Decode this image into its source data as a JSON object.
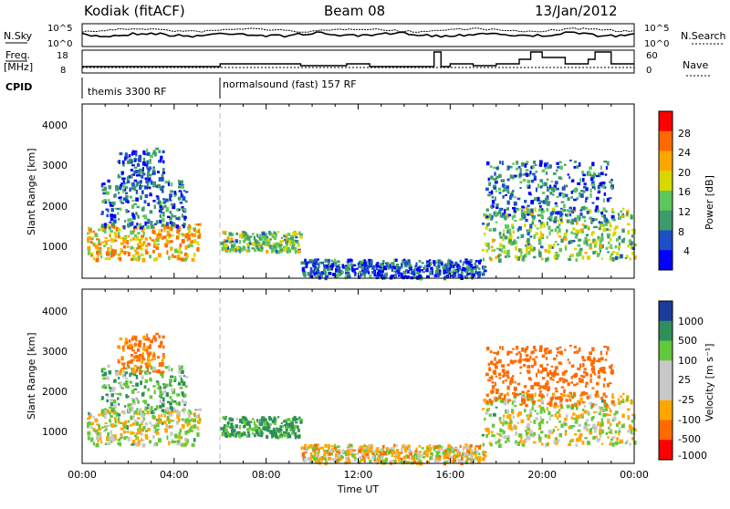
{
  "header": {
    "radar": "Kodiak (fitACF)",
    "beam": "Beam 08",
    "date": "13/Jan/2012"
  },
  "noise_panel": {
    "left_label": "N.Sky",
    "right_label": "N.Search",
    "right_ticks": [
      "10^5",
      "10^0"
    ],
    "left_ticks": [
      "10^5",
      "10^0"
    ]
  },
  "freq_panel": {
    "left_label_line1": "Freq.",
    "left_label_line2": "[MHz]",
    "left_ticks": [
      "18",
      "8"
    ],
    "right_label": "Nave",
    "right_ticks": [
      "60",
      "0"
    ]
  },
  "cpid": {
    "label": "CPID",
    "segments": [
      {
        "name": "themis 3300 RF",
        "start_hour": 0.0
      },
      {
        "name": "normalsound (fast) 157 RF",
        "start_hour": 6.0
      }
    ]
  },
  "power_panel": {
    "ylabel": "Slant Range [km]",
    "yticks": [
      "4000",
      "3000",
      "2000",
      "1000"
    ],
    "colorbar_label": "Power [dB]",
    "colorbar_ticks": [
      "28",
      "24",
      "20",
      "16",
      "12",
      "8",
      "4"
    ],
    "colorbar_colors": [
      "#ff0000",
      "#ff6a00",
      "#ffa500",
      "#d8d800",
      "#5cc85c",
      "#3d9a6a",
      "#1c4fc8",
      "#0000ff"
    ]
  },
  "velocity_panel": {
    "ylabel": "Slant Range [km]",
    "yticks": [
      "4000",
      "3000",
      "2000",
      "1000"
    ],
    "colorbar_label": "Velocity [m s⁻¹]",
    "colorbar_ticks": [
      "1000",
      "500",
      "100",
      "25",
      "-25",
      "-100",
      "-500",
      "-1000"
    ],
    "colorbar_colors": [
      "#1c3c9c",
      "#2f8f5a",
      "#62c93a",
      "#c8c8c8",
      "#c8c8c8",
      "#ffa500",
      "#ff6a00",
      "#ff0000"
    ]
  },
  "xaxis": {
    "label": "Time UT",
    "ticks": [
      "00:00",
      "04:00",
      "08:00",
      "12:00",
      "16:00",
      "20:00",
      "00:00"
    ]
  },
  "chart_data": {
    "type": "heatmap",
    "title": "Kodiak (fitACF)",
    "xlabel": "Time UT",
    "ylabel": "Slant Range [km]",
    "xlim": [
      0,
      24
    ],
    "ylim": [
      200,
      4600
    ],
    "echo_regions": [
      {
        "t0": 0.2,
        "t1": 5.1,
        "r_low": 700,
        "r_high": 1600,
        "power_dB": 20,
        "velocity": 10
      },
      {
        "t0": 0.8,
        "t1": 4.5,
        "r_low": 1500,
        "r_high": 2700,
        "power_dB": 8,
        "velocity": 80
      },
      {
        "t0": 1.5,
        "t1": 3.5,
        "r_low": 2500,
        "r_high": 3500,
        "power_dB": 6,
        "velocity": -150
      },
      {
        "t0": 6.0,
        "t1": 9.5,
        "r_low": 900,
        "r_high": 1400,
        "power_dB": 14,
        "velocity": 120
      },
      {
        "t0": 9.5,
        "t1": 17.5,
        "r_low": 250,
        "r_high": 700,
        "power_dB": 6,
        "velocity": -30
      },
      {
        "t0": 17.3,
        "t1": 24.0,
        "r_low": 700,
        "r_high": 2000,
        "power_dB": 14,
        "velocity": 5
      },
      {
        "t0": 17.5,
        "t1": 23.0,
        "r_low": 1700,
        "r_high": 3200,
        "power_dB": 8,
        "velocity": -300
      }
    ]
  }
}
